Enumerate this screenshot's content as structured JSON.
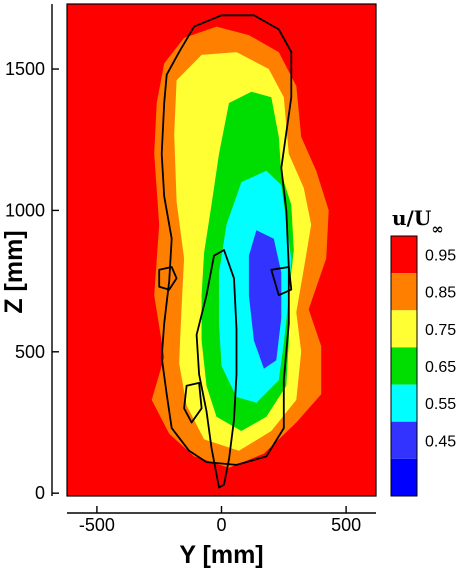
{
  "chart_data": {
    "type": "heatmap",
    "title": "",
    "xlabel": "Y [mm]",
    "ylabel": "Z [mm]",
    "xlim": [
      -620,
      620
    ],
    "ylim": [
      -10,
      1730
    ],
    "x_ticks": [
      -500,
      0,
      500
    ],
    "x_tick_labels": [
      "-500",
      "0",
      "500"
    ],
    "y_ticks": [
      0,
      500,
      1000,
      1500
    ],
    "y_tick_labels": [
      "0",
      "500",
      "1000",
      "1500"
    ],
    "grid": false,
    "legend_position": "right",
    "colorbar": {
      "title_main": "u/U",
      "title_sub": "∞",
      "levels": [
        "0.95",
        "0.85",
        "0.75",
        "0.65",
        "0.55",
        "0.45"
      ],
      "colors": [
        "#ff0000",
        "#ff7f00",
        "#ffff33",
        "#00dd00",
        "#00ffff",
        "#3333ff",
        "#0000ff"
      ]
    },
    "contour_regions": [
      {
        "level": "0.85-0.95",
        "color": "#ff7f00",
        "points": [
          [
            -230,
            1520
          ],
          [
            -150,
            1610
          ],
          [
            -20,
            1650
          ],
          [
            110,
            1620
          ],
          [
            230,
            1560
          ],
          [
            300,
            1440
          ],
          [
            320,
            1260
          ],
          [
            380,
            1140
          ],
          [
            430,
            1000
          ],
          [
            420,
            830
          ],
          [
            350,
            650
          ],
          [
            400,
            520
          ],
          [
            400,
            350
          ],
          [
            300,
            250
          ],
          [
            170,
            140
          ],
          [
            30,
            90
          ],
          [
            -110,
            130
          ],
          [
            -210,
            210
          ],
          [
            -280,
            330
          ],
          [
            -230,
            480
          ],
          [
            -270,
            700
          ],
          [
            -250,
            950
          ],
          [
            -270,
            1200
          ],
          [
            -260,
            1380
          ]
        ]
      },
      {
        "level": "0.75-0.85",
        "color": "#ffff33",
        "points": [
          [
            -180,
            1460
          ],
          [
            -80,
            1550
          ],
          [
            60,
            1560
          ],
          [
            190,
            1500
          ],
          [
            250,
            1400
          ],
          [
            270,
            1200
          ],
          [
            330,
            1080
          ],
          [
            360,
            950
          ],
          [
            330,
            790
          ],
          [
            300,
            640
          ],
          [
            320,
            500
          ],
          [
            300,
            330
          ],
          [
            200,
            220
          ],
          [
            70,
            150
          ],
          [
            -70,
            190
          ],
          [
            -140,
            310
          ],
          [
            -170,
            460
          ],
          [
            -160,
            660
          ],
          [
            -150,
            830
          ],
          [
            -180,
            1030
          ],
          [
            -190,
            1270
          ]
        ]
      },
      {
        "level": "0.65-0.75",
        "color": "#00dd00",
        "points": [
          [
            30,
            1380
          ],
          [
            120,
            1420
          ],
          [
            200,
            1400
          ],
          [
            230,
            1260
          ],
          [
            240,
            1130
          ],
          [
            280,
            1020
          ],
          [
            290,
            860
          ],
          [
            270,
            700
          ],
          [
            270,
            540
          ],
          [
            260,
            380
          ],
          [
            180,
            270
          ],
          [
            80,
            220
          ],
          [
            -20,
            270
          ],
          [
            -60,
            380
          ],
          [
            -80,
            540
          ],
          [
            -80,
            700
          ],
          [
            -70,
            850
          ],
          [
            -40,
            1020
          ],
          [
            -10,
            1200
          ]
        ]
      },
      {
        "level": "0.55-0.65",
        "color": "#00ffff",
        "points": [
          [
            80,
            1100
          ],
          [
            180,
            1140
          ],
          [
            240,
            1090
          ],
          [
            260,
            960
          ],
          [
            280,
            830
          ],
          [
            270,
            690
          ],
          [
            250,
            530
          ],
          [
            230,
            400
          ],
          [
            140,
            320
          ],
          [
            60,
            340
          ],
          [
            0,
            450
          ],
          [
            -10,
            600
          ],
          [
            -10,
            780
          ],
          [
            20,
            950
          ]
        ]
      },
      {
        "level": "0.45-0.55",
        "color": "#3333ff",
        "points": [
          [
            140,
            930
          ],
          [
            210,
            900
          ],
          [
            240,
            780
          ],
          [
            240,
            620
          ],
          [
            220,
            470
          ],
          [
            170,
            440
          ],
          [
            130,
            540
          ],
          [
            110,
            700
          ],
          [
            110,
            840
          ]
        ]
      }
    ],
    "outlines": [
      {
        "name": "rider-outline",
        "points": [
          [
            -170,
            1560
          ],
          [
            -110,
            1650
          ],
          [
            0,
            1690
          ],
          [
            130,
            1690
          ],
          [
            230,
            1640
          ],
          [
            280,
            1560
          ],
          [
            280,
            1400
          ],
          [
            240,
            1150
          ],
          [
            260,
            1000
          ],
          [
            270,
            800
          ],
          [
            270,
            600
          ],
          [
            250,
            400
          ],
          [
            250,
            230
          ],
          [
            180,
            130
          ],
          [
            60,
            100
          ],
          [
            -60,
            110
          ],
          [
            -130,
            150
          ],
          [
            -200,
            230
          ],
          [
            -220,
            350
          ],
          [
            -240,
            480
          ],
          [
            -230,
            600
          ],
          [
            -210,
            750
          ],
          [
            -200,
            900
          ],
          [
            -230,
            1050
          ],
          [
            -240,
            1200
          ],
          [
            -230,
            1380
          ],
          [
            -220,
            1480
          ]
        ]
      },
      {
        "name": "bike-outline",
        "points": [
          [
            -10,
            20
          ],
          [
            -40,
            160
          ],
          [
            -60,
            290
          ],
          [
            -90,
            420
          ],
          [
            -100,
            560
          ],
          [
            -60,
            700
          ],
          [
            -30,
            840
          ],
          [
            10,
            860
          ],
          [
            50,
            760
          ],
          [
            60,
            580
          ],
          [
            60,
            420
          ],
          [
            50,
            260
          ],
          [
            30,
            120
          ],
          [
            10,
            30
          ]
        ]
      },
      {
        "name": "rider-arm-left",
        "points": [
          [
            -250,
            790
          ],
          [
            -200,
            800
          ],
          [
            -180,
            760
          ],
          [
            -210,
            720
          ],
          [
            -250,
            730
          ]
        ]
      },
      {
        "name": "rider-arm-right",
        "points": [
          [
            200,
            790
          ],
          [
            270,
            800
          ],
          [
            280,
            720
          ],
          [
            230,
            700
          ]
        ]
      },
      {
        "name": "wheel-lower",
        "points": [
          [
            -140,
            380
          ],
          [
            -90,
            390
          ],
          [
            -80,
            300
          ],
          [
            -120,
            250
          ],
          [
            -150,
            300
          ]
        ]
      }
    ]
  }
}
